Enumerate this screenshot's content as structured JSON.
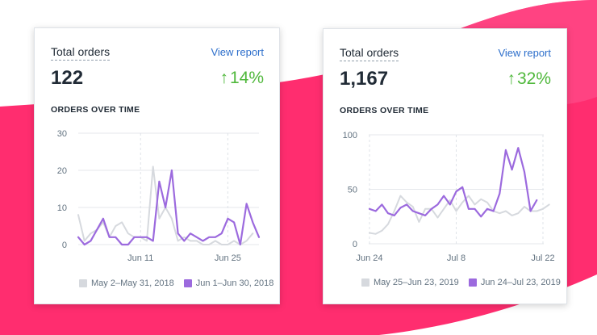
{
  "colors": {
    "bg_pink": "#ff2a6d",
    "bg_pink2": "#ff4f8c",
    "prev_series": "#d6d9de",
    "curr_series": "#9c6ade",
    "up": "#50b83c",
    "link": "#2c6ecb"
  },
  "cards": [
    {
      "title": "Total orders",
      "link": "View report",
      "total": "122",
      "change": "14%",
      "change_icon": "arrow-up-icon",
      "subtitle": "ORDERS OVER TIME",
      "chart_data": {
        "type": "line",
        "title": "",
        "xlabel": "",
        "ylabel": "",
        "ylim": [
          0,
          30
        ],
        "yticks": [
          "0",
          "10",
          "20",
          "30"
        ],
        "xticks": [
          {
            "label": "Jun 11",
            "index": 10
          },
          {
            "label": "Jun 25",
            "index": 24
          }
        ],
        "legend_placement": "bottom",
        "grid": true,
        "series": [
          {
            "name": "May 2–May 31, 2018",
            "color": "#d6d9de",
            "values": [
              8,
              1,
              3,
              4,
              6,
              2,
              5,
              6,
              3,
              2,
              2,
              1,
              21,
              7,
              10,
              7,
              1,
              2,
              1,
              1,
              0,
              0,
              1,
              0,
              0,
              1,
              0,
              1,
              3
            ]
          },
          {
            "name": "Jun 1–Jun 30, 2018",
            "color": "#9c6ade",
            "values": [
              2,
              0,
              1,
              4,
              7,
              2,
              2,
              0,
              0,
              2,
              2,
              2,
              1,
              17,
              10,
              20,
              3,
              1,
              3,
              2,
              1,
              2,
              2,
              3,
              7,
              6,
              0,
              11,
              6,
              2
            ]
          }
        ]
      }
    },
    {
      "title": "Total orders",
      "link": "View report",
      "total": "1,167",
      "change": "32%",
      "change_icon": "arrow-up-icon",
      "subtitle": "ORDERS OVER TIME",
      "chart_data": {
        "type": "line",
        "title": "",
        "xlabel": "",
        "ylabel": "",
        "ylim": [
          0,
          100
        ],
        "yticks": [
          "0",
          "50",
          "100"
        ],
        "xticks": [
          {
            "label": "Jun 24",
            "index": 0
          },
          {
            "label": "Jul 8",
            "index": 14
          },
          {
            "label": "Jul 22",
            "index": 28
          }
        ],
        "legend_placement": "bottom",
        "grid": true,
        "series": [
          {
            "name": "May 25–Jun 23, 2019",
            "color": "#d6d9de",
            "values": [
              10,
              9,
              12,
              18,
              30,
              44,
              38,
              34,
              20,
              32,
              32,
              24,
              32,
              40,
              30,
              38,
              44,
              36,
              41,
              38,
              30,
              28,
              30,
              26,
              28,
              34,
              30,
              30,
              32,
              36
            ]
          },
          {
            "name": "Jun 24–Jul 23, 2019",
            "color": "#9c6ade",
            "values": [
              32,
              30,
              36,
              28,
              26,
              33,
              36,
              30,
              28,
              26,
              32,
              36,
              44,
              36,
              48,
              52,
              32,
              32,
              25,
              32,
              30,
              46,
              86,
              68,
              88,
              66,
              30,
              40
            ]
          }
        ]
      }
    }
  ]
}
